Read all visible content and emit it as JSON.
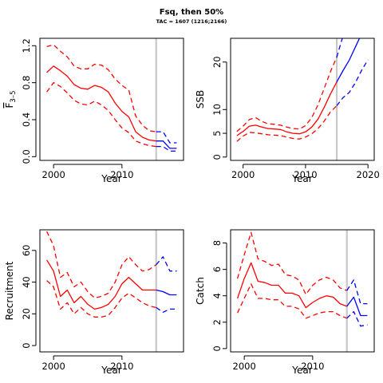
{
  "header": {
    "title": "Fsq, then 50%",
    "subtitle": "TAC = 1607 (1216;2166)"
  },
  "chart_data": [
    {
      "type": "line",
      "ylabel_math": {
        "base": "F",
        "sub": "3–5",
        "overbar": true
      },
      "xlabel": "Year",
      "xlim": [
        1998,
        2019
      ],
      "ylim": [
        0,
        1.2
      ],
      "xticks": [
        2000,
        2010
      ],
      "yticks": [
        "0.0",
        "0.4",
        "0.8",
        "1.2"
      ],
      "vline_x": 2015,
      "series": [
        {
          "style": "hist-median",
          "x": [
            1999,
            2000,
            2001,
            2002,
            2003,
            2004,
            2005,
            2006,
            2007,
            2008,
            2009,
            2010,
            2011,
            2012,
            2013,
            2014,
            2015
          ],
          "values": [
            0.91,
            0.98,
            0.93,
            0.87,
            0.78,
            0.74,
            0.73,
            0.77,
            0.75,
            0.7,
            0.58,
            0.49,
            0.43,
            0.27,
            0.21,
            0.18,
            0.17
          ]
        },
        {
          "style": "hist-upper",
          "x": [
            1999,
            2000,
            2001,
            2002,
            2003,
            2004,
            2005,
            2006,
            2007,
            2008,
            2009,
            2010,
            2011,
            2012,
            2013,
            2014,
            2015
          ],
          "values": [
            1.19,
            1.21,
            1.14,
            1.08,
            0.98,
            0.95,
            0.95,
            1.0,
            0.99,
            0.94,
            0.84,
            0.77,
            0.72,
            0.44,
            0.34,
            0.28,
            0.27
          ]
        },
        {
          "style": "hist-lower",
          "x": [
            1999,
            2000,
            2001,
            2002,
            2003,
            2004,
            2005,
            2006,
            2007,
            2008,
            2009,
            2010,
            2011,
            2012,
            2013,
            2014,
            2015
          ],
          "values": [
            0.7,
            0.8,
            0.76,
            0.69,
            0.61,
            0.57,
            0.56,
            0.6,
            0.56,
            0.5,
            0.4,
            0.31,
            0.26,
            0.17,
            0.14,
            0.12,
            0.11
          ]
        },
        {
          "style": "proj-median",
          "x": [
            2015,
            2016,
            2017,
            2018
          ],
          "values": [
            0.17,
            0.17,
            0.09,
            0.09
          ]
        },
        {
          "style": "proj-upper",
          "x": [
            2015,
            2016,
            2017,
            2018
          ],
          "values": [
            0.27,
            0.27,
            0.15,
            0.15
          ]
        },
        {
          "style": "proj-lower",
          "x": [
            2015,
            2016,
            2017,
            2018
          ],
          "values": [
            0.11,
            0.11,
            0.06,
            0.06
          ]
        }
      ]
    },
    {
      "type": "line",
      "ylabel": "SSB",
      "xlabel": "Year",
      "xlim": [
        1998,
        2021
      ],
      "ylim": [
        0,
        25
      ],
      "xticks": [
        2000,
        2010,
        2020
      ],
      "yticks": [
        "0",
        "5",
        "10",
        "20"
      ],
      "vline_x": 2015,
      "series": [
        {
          "style": "hist-median",
          "x": [
            1999,
            2000,
            2001,
            2002,
            2003,
            2004,
            2005,
            2006,
            2007,
            2008,
            2009,
            2010,
            2011,
            2012,
            2013,
            2014,
            2015
          ],
          "values": [
            4.5,
            5.4,
            6.5,
            6.7,
            6.3,
            6.0,
            5.9,
            5.8,
            5.3,
            5.0,
            4.9,
            5.3,
            6.3,
            8.0,
            10.5,
            13.3,
            15.8
          ]
        },
        {
          "style": "hist-upper",
          "x": [
            1999,
            2000,
            2001,
            2002,
            2003,
            2004,
            2005,
            2006,
            2007,
            2008,
            2009,
            2010,
            2011,
            2012,
            2013,
            2014,
            2015
          ],
          "values": [
            5.4,
            6.5,
            7.9,
            8.3,
            7.5,
            7.0,
            6.9,
            6.7,
            6.3,
            6.0,
            5.9,
            6.6,
            8.3,
            11.0,
            14.5,
            18.0,
            21.0
          ]
        },
        {
          "style": "hist-lower",
          "x": [
            1999,
            2000,
            2001,
            2002,
            2003,
            2004,
            2005,
            2006,
            2007,
            2008,
            2009,
            2010,
            2011,
            2012,
            2013,
            2014,
            2015
          ],
          "values": [
            3.3,
            4.4,
            5.2,
            5.1,
            4.9,
            4.7,
            4.6,
            4.5,
            4.2,
            3.9,
            3.8,
            4.2,
            4.9,
            6.0,
            7.6,
            9.5,
            10.8
          ]
        },
        {
          "style": "proj-median",
          "x": [
            2015,
            2016,
            2017,
            2018,
            2019
          ],
          "values": [
            15.8,
            18.2,
            20.4,
            23.2,
            26.0
          ]
        },
        {
          "style": "proj-upper",
          "x": [
            2015,
            2016,
            2017
          ],
          "values": [
            21.0,
            25.5,
            30.0
          ]
        },
        {
          "style": "proj-lower",
          "x": [
            2015,
            2016,
            2017,
            2018,
            2019,
            2020
          ],
          "values": [
            10.8,
            12.5,
            13.6,
            15.7,
            18.3,
            20.5
          ]
        }
      ]
    },
    {
      "type": "line",
      "ylabel": "Recruitment",
      "xlabel": "Year",
      "xlim": [
        1998,
        2019
      ],
      "ylim": [
        0,
        70
      ],
      "xticks": [
        2000,
        2010
      ],
      "yticks": [
        "0",
        "20",
        "40",
        "60"
      ],
      "vline_x": 2015,
      "series": [
        {
          "style": "hist-median",
          "x": [
            1999,
            2000,
            2001,
            2002,
            2003,
            2004,
            2005,
            2006,
            2007,
            2008,
            2009,
            2010,
            2011,
            2012,
            2013,
            2014,
            2015
          ],
          "values": [
            54,
            47,
            31,
            35,
            27,
            31,
            26,
            23,
            24,
            26,
            31,
            39,
            43,
            39,
            35,
            35,
            35
          ]
        },
        {
          "style": "hist-upper",
          "x": [
            1999,
            2000,
            2001,
            2002,
            2003,
            2004,
            2005,
            2006,
            2007,
            2008,
            2009,
            2010,
            2011,
            2012,
            2013,
            2014,
            2015
          ],
          "values": [
            72,
            63,
            43,
            46,
            37,
            40,
            34,
            30,
            31,
            33,
            40,
            51,
            56,
            51,
            47,
            48,
            51
          ]
        },
        {
          "style": "hist-lower",
          "x": [
            1999,
            2000,
            2001,
            2002,
            2003,
            2004,
            2005,
            2006,
            2007,
            2008,
            2009,
            2010,
            2011,
            2012,
            2013,
            2014,
            2015
          ],
          "values": [
            41,
            37,
            23,
            27,
            20,
            24,
            20,
            18,
            18,
            19,
            24,
            30,
            33,
            30,
            27,
            25,
            24
          ]
        },
        {
          "style": "proj-median",
          "x": [
            2015,
            2016,
            2017,
            2018
          ],
          "values": [
            35,
            34,
            32,
            32
          ]
        },
        {
          "style": "proj-upper",
          "x": [
            2015,
            2016,
            2017,
            2018
          ],
          "values": [
            51,
            56,
            47,
            47
          ]
        },
        {
          "style": "proj-lower",
          "x": [
            2015,
            2016,
            2017,
            2018
          ],
          "values": [
            24,
            21,
            23,
            23
          ]
        }
      ]
    },
    {
      "type": "line",
      "ylabel": "Catch",
      "xlabel": "Year",
      "xlim": [
        1998,
        2019
      ],
      "ylim": [
        0,
        9
      ],
      "xticks": [
        2000,
        2010
      ],
      "yticks": [
        "0",
        "2",
        "4",
        "6",
        "8"
      ],
      "vline_x": 2015,
      "series": [
        {
          "style": "hist-median",
          "x": [
            1999,
            2000,
            2001,
            2002,
            2003,
            2004,
            2005,
            2006,
            2007,
            2008,
            2009,
            2010,
            2011,
            2012,
            2013,
            2014,
            2015
          ],
          "values": [
            3.8,
            5.3,
            6.5,
            5.1,
            5.0,
            4.8,
            4.8,
            4.2,
            4.2,
            4.0,
            3.1,
            3.5,
            3.8,
            4.0,
            3.9,
            3.4,
            3.2
          ]
        },
        {
          "style": "hist-upper",
          "x": [
            1999,
            2000,
            2001,
            2002,
            2003,
            2004,
            2005,
            2006,
            2007,
            2008,
            2009,
            2010,
            2011,
            2012,
            2013,
            2014,
            2015
          ],
          "values": [
            5.3,
            7.1,
            8.8,
            6.8,
            6.6,
            6.3,
            6.4,
            5.6,
            5.5,
            5.2,
            4.1,
            4.8,
            5.2,
            5.4,
            5.2,
            4.6,
            4.4
          ]
        },
        {
          "style": "hist-lower",
          "x": [
            1999,
            2000,
            2001,
            2002,
            2003,
            2004,
            2005,
            2006,
            2007,
            2008,
            2009,
            2010,
            2011,
            2012,
            2013,
            2014,
            2015
          ],
          "values": [
            2.7,
            3.8,
            4.9,
            3.8,
            3.8,
            3.7,
            3.7,
            3.2,
            3.2,
            3.0,
            2.3,
            2.5,
            2.7,
            2.8,
            2.8,
            2.5,
            2.3
          ]
        },
        {
          "style": "proj-median",
          "x": [
            2015,
            2016,
            2017,
            2018
          ],
          "values": [
            3.2,
            3.9,
            2.5,
            2.5
          ]
        },
        {
          "style": "proj-upper",
          "x": [
            2015,
            2016,
            2017,
            2018
          ],
          "values": [
            4.4,
            5.2,
            3.4,
            3.4
          ]
        },
        {
          "style": "proj-lower",
          "x": [
            2015,
            2016,
            2017,
            2018
          ],
          "values": [
            2.3,
            2.8,
            1.7,
            1.8
          ]
        }
      ]
    }
  ]
}
